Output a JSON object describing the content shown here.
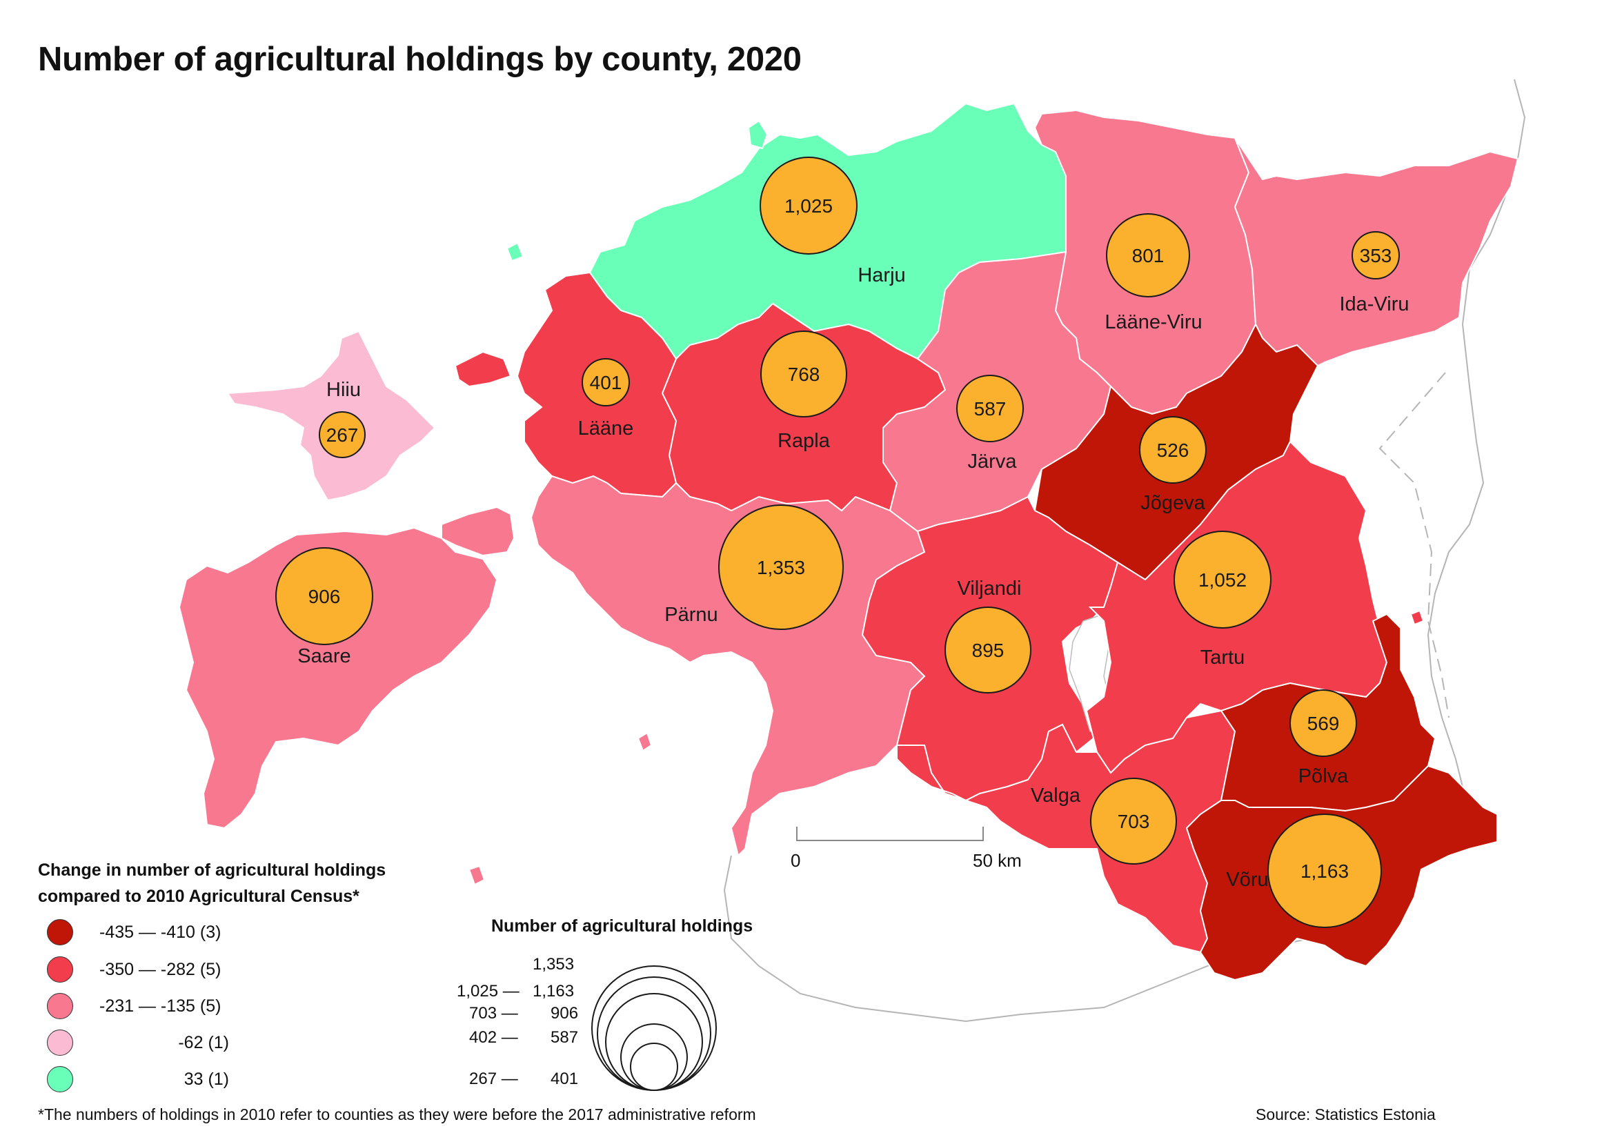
{
  "title": "Number of agricultural holdings by county, 2020",
  "colors": {
    "dark_red": "#bf1607",
    "red": "#f23d4d",
    "pink": "#f87890",
    "light_pink": "#fbbcd3",
    "green": "#6affb8",
    "bubble": "#fbb02e"
  },
  "counties": [
    {
      "name": "Harju",
      "holdings": "1,025",
      "class": "green"
    },
    {
      "name": "Lääne-Viru",
      "holdings": "801",
      "class": "pink"
    },
    {
      "name": "Ida-Viru",
      "holdings": "353",
      "class": "pink"
    },
    {
      "name": "Hiiu",
      "holdings": "267",
      "class": "light_pink"
    },
    {
      "name": "Lääne",
      "holdings": "401",
      "class": "red"
    },
    {
      "name": "Rapla",
      "holdings": "768",
      "class": "red"
    },
    {
      "name": "Järva",
      "holdings": "587",
      "class": "pink"
    },
    {
      "name": "Jõgeva",
      "holdings": "526",
      "class": "dark_red"
    },
    {
      "name": "Saare",
      "holdings": "906",
      "class": "pink"
    },
    {
      "name": "Pärnu",
      "holdings": "1,353",
      "class": "pink"
    },
    {
      "name": "Viljandi",
      "holdings": "895",
      "class": "red"
    },
    {
      "name": "Tartu",
      "holdings": "1,052",
      "class": "red"
    },
    {
      "name": "Põlva",
      "holdings": "569",
      "class": "dark_red"
    },
    {
      "name": "Valga",
      "holdings": "703",
      "class": "red"
    },
    {
      "name": "Võru",
      "holdings": "1,163",
      "class": "dark_red"
    }
  ],
  "legend": {
    "title_line1": "Change in number of agricultural holdings",
    "title_line2": "compared to 2010 Agricultural Census*",
    "items": [
      {
        "label": "-435 — -410 (3)",
        "class": "dark_red"
      },
      {
        "label": "-350 — -282 (5)",
        "class": "red"
      },
      {
        "label": "-231 — -135 (5)",
        "class": "pink"
      },
      {
        "label": "-62 (1)",
        "class": "light_pink"
      },
      {
        "label": "33 (1)",
        "class": "green"
      }
    ]
  },
  "size_legend": {
    "title": "Number of agricultural holdings",
    "rows": [
      {
        "left": "",
        "right": "1,353"
      },
      {
        "left": "1,025 —",
        "right": "1,163"
      },
      {
        "left": "703 —",
        "right": "906"
      },
      {
        "left": "402 —",
        "right": "587"
      },
      {
        "left": "267 —",
        "right": "401"
      }
    ]
  },
  "scale": {
    "start": "0",
    "end": "50 km"
  },
  "footnote": "*The numbers of holdings in 2010 refer to counties as they were before the 2017 administrative reform",
  "source": "Source: Statistics Estonia"
}
